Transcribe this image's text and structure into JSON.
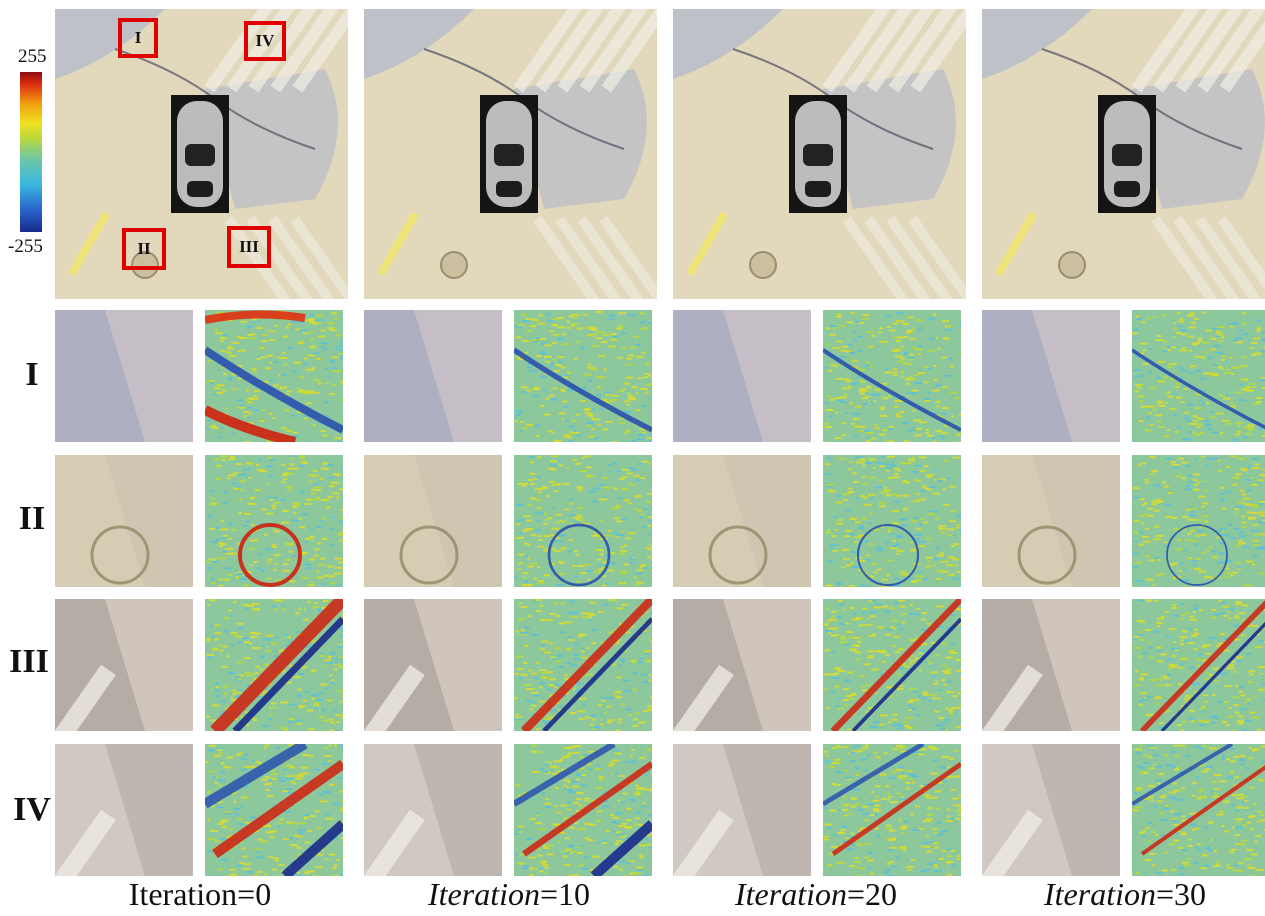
{
  "figure": {
    "colorbar": {
      "max_label": "255",
      "min_label": "-255",
      "colors": [
        "#1a2a8c",
        "#2a6ad0",
        "#3ab8e0",
        "#6cc6a8",
        "#b8d840",
        "#f0e020",
        "#f0a010",
        "#e03010",
        "#8c0c14"
      ]
    },
    "row_labels": [
      "I",
      "II",
      "III",
      "IV"
    ],
    "roi_labels": [
      "I",
      "IV",
      "II",
      "III"
    ],
    "columns": [
      {
        "caption_prefix": "Iteration",
        "caption_suffix": "=0",
        "italic": false
      },
      {
        "caption_prefix": "Iteration",
        "caption_suffix": "=10",
        "italic": true
      },
      {
        "caption_prefix": "Iteration",
        "caption_suffix": "=20",
        "italic": true
      },
      {
        "caption_prefix": "Iteration",
        "caption_suffix": "=30",
        "italic": true
      }
    ],
    "colors": {
      "asphalt": "#ded6c0",
      "shadow": "#a9b4c8",
      "highlight_box": "#e00000"
    }
  }
}
